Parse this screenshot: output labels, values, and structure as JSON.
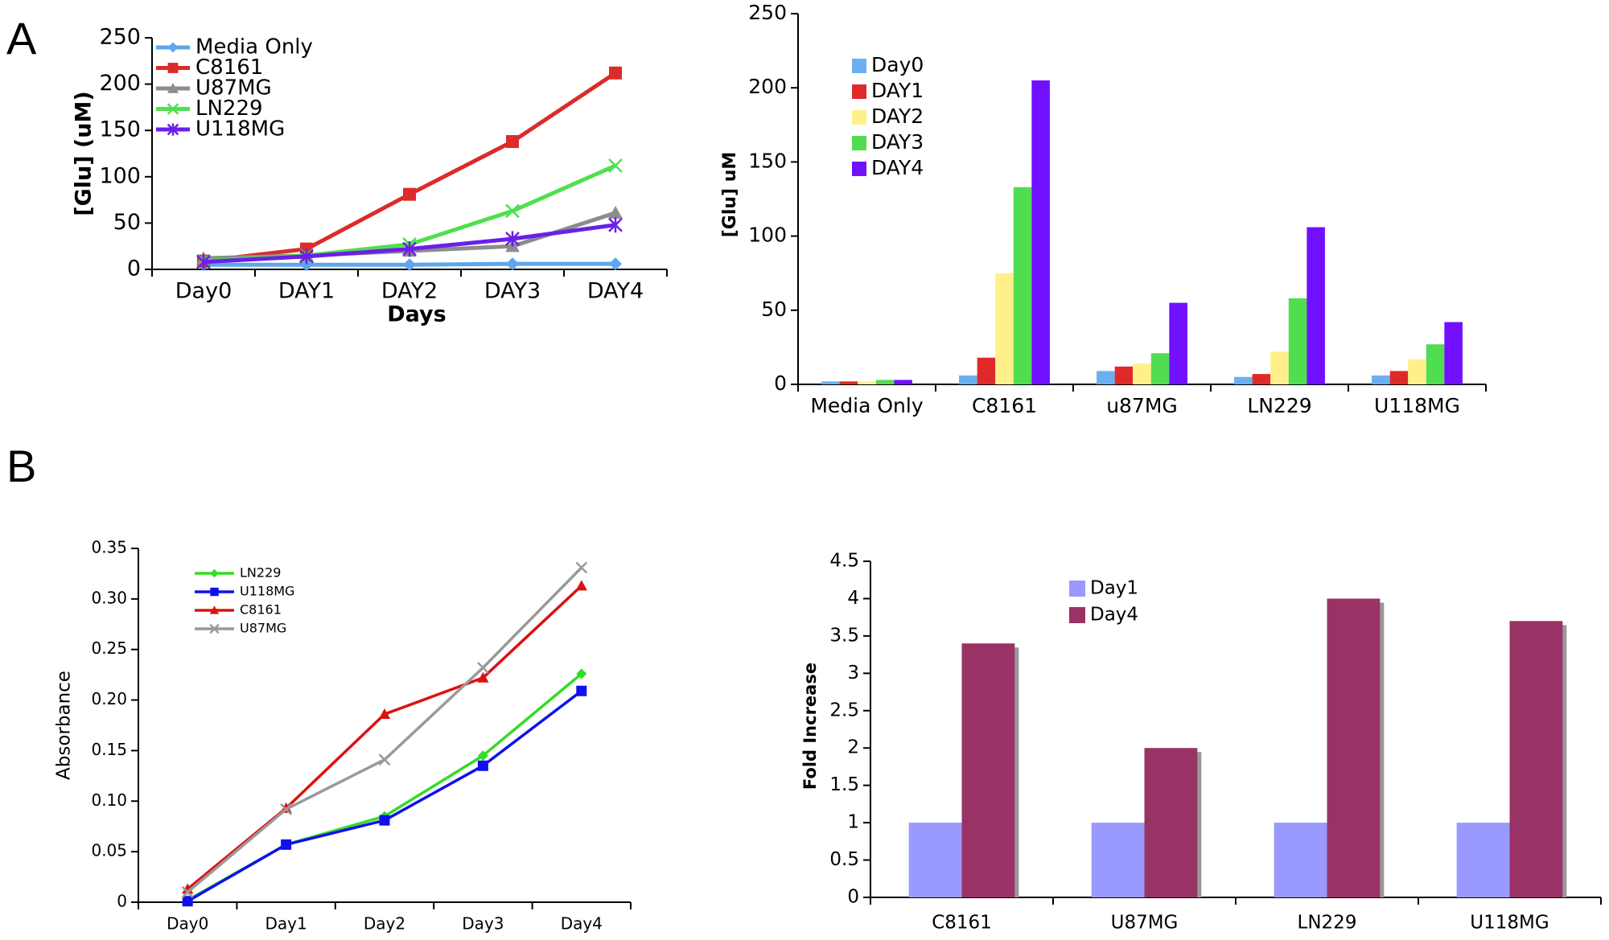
{
  "chart_data": [
    {
      "type": "line",
      "panel": "A",
      "x_label": "Days",
      "y_label": "[Glu] (uM)",
      "categories": [
        "Day0",
        "DAY1",
        "DAY2",
        "DAY3",
        "DAY4"
      ],
      "ylim": [
        0,
        250
      ],
      "yticks": [
        0,
        50,
        100,
        150,
        200,
        250
      ],
      "series": [
        {
          "name": "Media Only",
          "color": "#5ea6ee",
          "marker": "diamond",
          "values": [
            5,
            5,
            5,
            6,
            6
          ]
        },
        {
          "name": "C8161",
          "color": "#dd2a2a",
          "marker": "square",
          "values": [
            9,
            22,
            81,
            138,
            212
          ]
        },
        {
          "name": "U87MG",
          "color": "#8c8c8c",
          "marker": "triangle",
          "values": [
            12,
            15,
            20,
            25,
            61
          ]
        },
        {
          "name": "LN229",
          "color": "#4fe04f",
          "marker": "x",
          "values": [
            9,
            15,
            27,
            63,
            112
          ]
        },
        {
          "name": "U118MG",
          "color": "#6b1fe8",
          "marker": "star",
          "values": [
            8,
            14,
            22,
            33,
            48
          ]
        }
      ]
    },
    {
      "type": "bar",
      "y_label": "[Glu] uM",
      "categories": [
        "Media Only",
        "C8161",
        "u87MG",
        "LN229",
        "U118MG"
      ],
      "ylim": [
        0,
        250
      ],
      "yticks": [
        0,
        50,
        100,
        150,
        200,
        250
      ],
      "series": [
        {
          "name": "Day0",
          "color": "#6ab0f0",
          "values": [
            2,
            6,
            9,
            5,
            6
          ]
        },
        {
          "name": "DAY1",
          "color": "#e02a2a",
          "values": [
            2,
            18,
            12,
            7,
            9
          ]
        },
        {
          "name": "DAY2",
          "color": "#fff08a",
          "values": [
            2,
            75,
            14,
            22,
            17
          ]
        },
        {
          "name": "DAY3",
          "color": "#50dd50",
          "values": [
            3,
            133,
            21,
            58,
            27
          ]
        },
        {
          "name": "DAY4",
          "color": "#7010ff",
          "values": [
            3,
            205,
            55,
            106,
            42
          ]
        }
      ]
    },
    {
      "type": "line",
      "panel": "B",
      "y_label": "Absorbance",
      "categories": [
        "Day0",
        "Day1",
        "Day2",
        "Day3",
        "Day4"
      ],
      "ylim": [
        0,
        0.35
      ],
      "yticks": [
        0,
        0.05,
        {
          "value": 0.1,
          "label": "0.10"
        },
        0.15,
        {
          "value": 0.2,
          "label": "0.20"
        },
        0.25,
        {
          "value": 0.3,
          "label": "0.30"
        },
        0.35
      ],
      "series": [
        {
          "name": "LN229",
          "color": "#33dd22",
          "marker": "diamond",
          "values": [
            0.002,
            0.057,
            0.085,
            0.145,
            0.226
          ]
        },
        {
          "name": "U118MG",
          "color": "#1010ee",
          "marker": "square",
          "values": [
            0.001,
            0.057,
            0.081,
            0.135,
            0.209
          ]
        },
        {
          "name": "C8161",
          "color": "#dd1111",
          "marker": "triangle",
          "values": [
            0.013,
            0.093,
            0.186,
            0.222,
            0.313
          ]
        },
        {
          "name": "U87MG",
          "color": "#999999",
          "marker": "x",
          "values": [
            0.01,
            0.092,
            0.141,
            0.232,
            0.331
          ]
        }
      ]
    },
    {
      "type": "bar",
      "y_label": "Fold Increase",
      "categories": [
        "C8161",
        "U87MG",
        "LN229",
        "U118MG"
      ],
      "ylim": [
        0,
        4.5
      ],
      "yticks": [
        0,
        0.5,
        1,
        1.5,
        2,
        2.5,
        3,
        3.5,
        4,
        4.5
      ],
      "series": [
        {
          "name": "Day1",
          "color": "#9999ff",
          "values": [
            1,
            1,
            1,
            1
          ]
        },
        {
          "name": "Day4",
          "color": "#993366",
          "values": [
            3.4,
            2,
            4,
            3.7
          ]
        }
      ]
    }
  ]
}
